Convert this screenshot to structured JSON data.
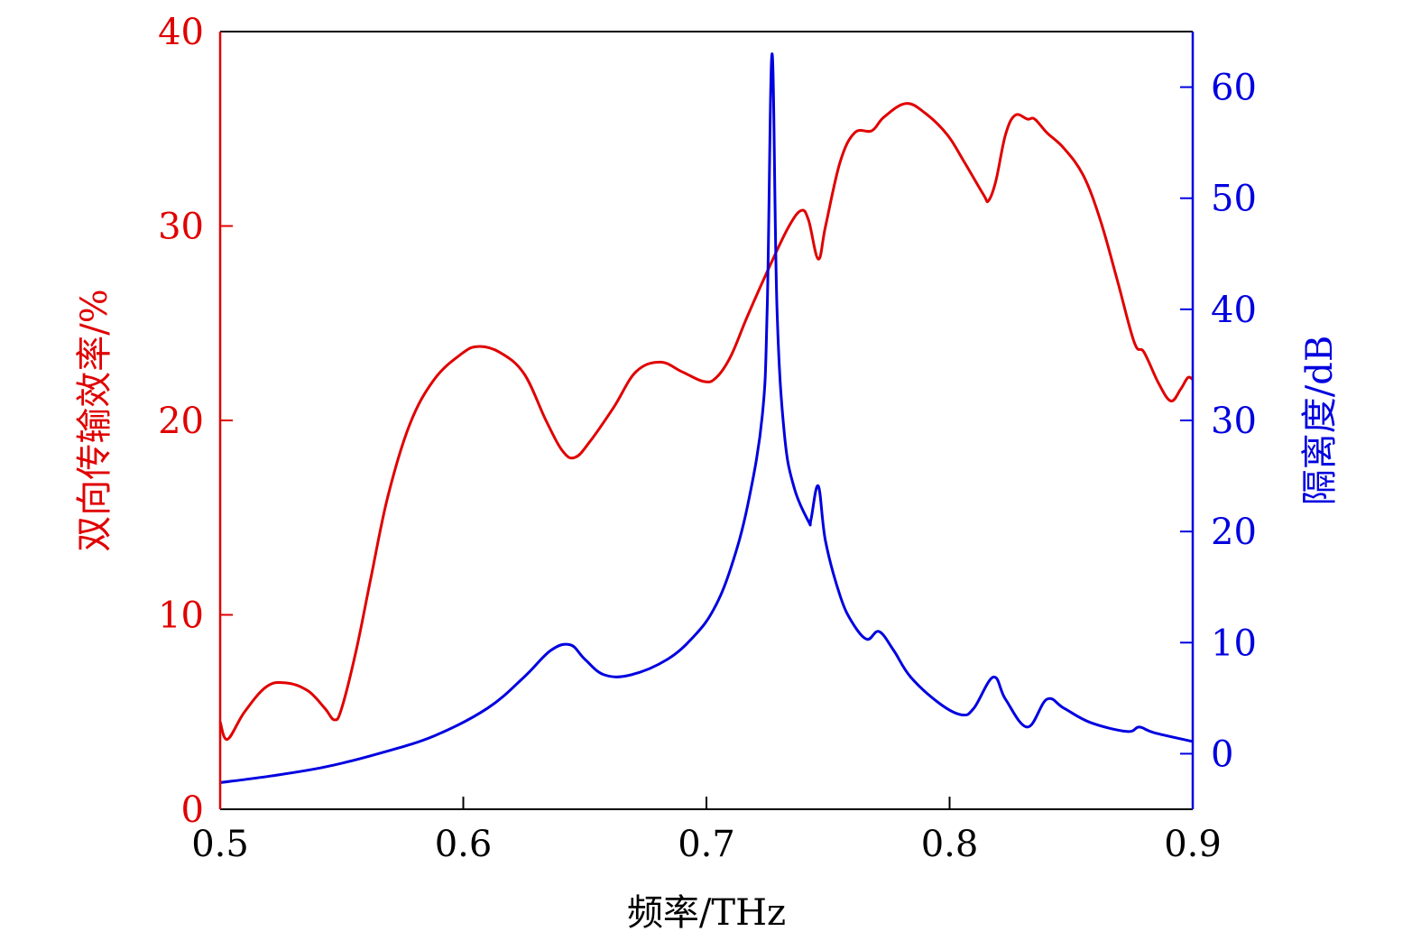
{
  "chart_data": {
    "type": "line",
    "title": "",
    "xlabel": "频率/THz",
    "ylabel": "双向传输效率/%",
    "y2label": "隔离度/dB",
    "xlim": [
      0.5,
      0.9
    ],
    "ylim": [
      0,
      40
    ],
    "y2lim": [
      -5,
      65
    ],
    "xticks": [
      "0.5",
      "0.6",
      "0.7",
      "0.8",
      "0.9"
    ],
    "yticks": [
      "0",
      "10",
      "20",
      "30",
      "40"
    ],
    "y2ticks": [
      "0",
      "10",
      "20",
      "30",
      "40",
      "50",
      "60"
    ],
    "grid": false,
    "colors": {
      "left": "#e00000",
      "right": "#0000e0",
      "frame": "#000000"
    },
    "series": [
      {
        "name": "双向传输效率",
        "axis": "left",
        "x": [
          0.5,
          0.503,
          0.51,
          0.519,
          0.527,
          0.536,
          0.543,
          0.547,
          0.55,
          0.556,
          0.562,
          0.569,
          0.578,
          0.588,
          0.599,
          0.606,
          0.615,
          0.625,
          0.634,
          0.641,
          0.646,
          0.652,
          0.662,
          0.671,
          0.681,
          0.69,
          0.699,
          0.704,
          0.71,
          0.717,
          0.727,
          0.734,
          0.739,
          0.742,
          0.746,
          0.749,
          0.755,
          0.761,
          0.768,
          0.773,
          0.782,
          0.79,
          0.799,
          0.806,
          0.814,
          0.816,
          0.819,
          0.823,
          0.827,
          0.832,
          0.835,
          0.84,
          0.847,
          0.855,
          0.862,
          0.869,
          0.876,
          0.88,
          0.886,
          0.891,
          0.895,
          0.898,
          0.9
        ],
        "y": [
          4.5,
          3.6,
          5.0,
          6.3,
          6.5,
          6.1,
          5.2,
          4.6,
          5.2,
          8.2,
          11.9,
          16.1,
          19.8,
          22.1,
          23.4,
          23.8,
          23.5,
          22.4,
          20.0,
          18.4,
          18.1,
          18.9,
          20.7,
          22.5,
          23.0,
          22.5,
          22.0,
          22.2,
          23.3,
          25.4,
          28.2,
          30.0,
          30.8,
          30.3,
          28.3,
          30.0,
          33.3,
          34.8,
          34.9,
          35.6,
          36.3,
          35.8,
          34.7,
          33.3,
          31.6,
          31.3,
          32.3,
          34.7,
          35.7,
          35.5,
          35.5,
          34.8,
          34.0,
          32.6,
          30.3,
          27.2,
          24.0,
          23.5,
          21.9,
          21.0,
          21.6,
          22.2,
          22.1
        ]
      },
      {
        "name": "隔离度",
        "axis": "right",
        "x": [
          0.5,
          0.521,
          0.543,
          0.565,
          0.588,
          0.61,
          0.625,
          0.636,
          0.644,
          0.65,
          0.658,
          0.669,
          0.684,
          0.695,
          0.703,
          0.71,
          0.717,
          0.723,
          0.725,
          0.727,
          0.729,
          0.732,
          0.736,
          0.742,
          0.743,
          0.746,
          0.749,
          0.755,
          0.76,
          0.766,
          0.771,
          0.777,
          0.784,
          0.796,
          0.805,
          0.81,
          0.818,
          0.823,
          0.832,
          0.84,
          0.847,
          0.858,
          0.873,
          0.878,
          0.884,
          0.9
        ],
        "y": [
          -2.6,
          -2.0,
          -1.2,
          0,
          1.6,
          4.1,
          6.9,
          9.3,
          9.8,
          8.5,
          7.1,
          7.1,
          8.5,
          10.6,
          13.0,
          16.7,
          22.4,
          30.5,
          40.2,
          63.0,
          40.2,
          28.9,
          24.0,
          20.9,
          21.1,
          24.1,
          19.1,
          14.2,
          11.8,
          10.3,
          11.0,
          9.3,
          6.9,
          4.5,
          3.5,
          4.1,
          6.9,
          4.9,
          2.4,
          4.9,
          4.1,
          2.8,
          2.0,
          2.4,
          1.9,
          1.1
        ]
      }
    ]
  }
}
